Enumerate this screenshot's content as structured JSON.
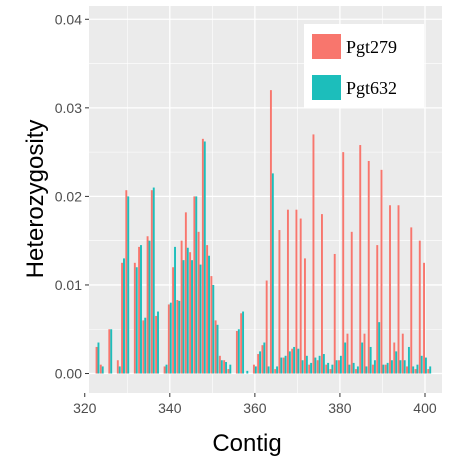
{
  "chart_data": {
    "type": "bar",
    "xlabel": "Contig",
    "ylabel": "Heterozygosity",
    "xlim": [
      321,
      404
    ],
    "ylim": [
      -0.0022,
      0.0415
    ],
    "x_ticks": [
      320,
      340,
      360,
      380,
      400
    ],
    "x_tick_labels": [
      "320",
      "340",
      "360",
      "380",
      "400"
    ],
    "y_ticks": [
      0,
      0.01,
      0.02,
      0.03,
      0.04
    ],
    "y_tick_labels": [
      "0.00",
      "0.01",
      "0.02",
      "0.03",
      "0.04"
    ],
    "grid": true,
    "legend_position": "top-right",
    "colors": {
      "panel": "#ebebeb",
      "grid_major": "#ffffff",
      "Pgt279": "#f8766d",
      "Pgt632": "#1cbebb"
    },
    "x": [
      323,
      324,
      326,
      328,
      329,
      330,
      332,
      333,
      334,
      335,
      336,
      337,
      339,
      340,
      341,
      342,
      343,
      344,
      345,
      346,
      347,
      348,
      349,
      350,
      351,
      352,
      353,
      354,
      356,
      357,
      358,
      360,
      361,
      362,
      363,
      364,
      365,
      366,
      367,
      368,
      369,
      370,
      371,
      372,
      373,
      374,
      375,
      376,
      377,
      378,
      379,
      380,
      381,
      382,
      383,
      384,
      385,
      386,
      387,
      388,
      389,
      390,
      391,
      392,
      393,
      394,
      395,
      396,
      397,
      398,
      399,
      400,
      401
    ],
    "series": [
      {
        "name": "Pgt279",
        "values": [
          0.003,
          0.001,
          0.005,
          0.0015,
          0.0125,
          0.0207,
          0.0125,
          0.0143,
          0.006,
          0.0155,
          0.0207,
          0.0065,
          0.0008,
          0.0078,
          0.012,
          0.0083,
          0.015,
          0.0182,
          0.0137,
          0.02,
          0.016,
          0.0265,
          0.0145,
          0.011,
          0.006,
          0.002,
          0.0015,
          0.0005,
          0.0048,
          0.0068,
          0.0,
          0.001,
          0.0022,
          0.0032,
          0.0105,
          0.032,
          0.0005,
          0.0162,
          0.0018,
          0.0185,
          0.0028,
          0.0185,
          0.0175,
          0.013,
          0.001,
          0.027,
          0.0015,
          0.018,
          0.001,
          0.0005,
          0.0135,
          0.0015,
          0.025,
          0.0045,
          0.016,
          0.0005,
          0.0258,
          0.0045,
          0.024,
          0.001,
          0.0145,
          0.023,
          0.001,
          0.019,
          0.0035,
          0.019,
          0.0045,
          0.0008,
          0.0165,
          0.0005,
          0.015,
          0.0125,
          0.0005
        ]
      },
      {
        "name": "Pgt632",
        "values": [
          0.0035,
          0.0008,
          0.005,
          0.0008,
          0.013,
          0.02,
          0.012,
          0.0145,
          0.0063,
          0.015,
          0.021,
          0.007,
          0.001,
          0.008,
          0.0143,
          0.0082,
          0.0128,
          0.0142,
          0.0128,
          0.02,
          0.0123,
          0.0262,
          0.0133,
          0.01,
          0.0055,
          0.0015,
          0.0013,
          0.001,
          0.005,
          0.007,
          0.0003,
          0.0008,
          0.0025,
          0.0035,
          0.0008,
          0.0226,
          0.0008,
          0.0018,
          0.002,
          0.0025,
          0.003,
          0.0028,
          0.0015,
          0.002,
          0.0012,
          0.0018,
          0.002,
          0.0022,
          0.0012,
          0.001,
          0.0015,
          0.002,
          0.0035,
          0.001,
          0.0012,
          0.0008,
          0.0035,
          0.0008,
          0.003,
          0.0015,
          0.0058,
          0.001,
          0.0012,
          0.0015,
          0.0025,
          0.0015,
          0.0015,
          0.003,
          0.0008,
          0.001,
          0.002,
          0.0018,
          0.0008
        ]
      }
    ]
  }
}
